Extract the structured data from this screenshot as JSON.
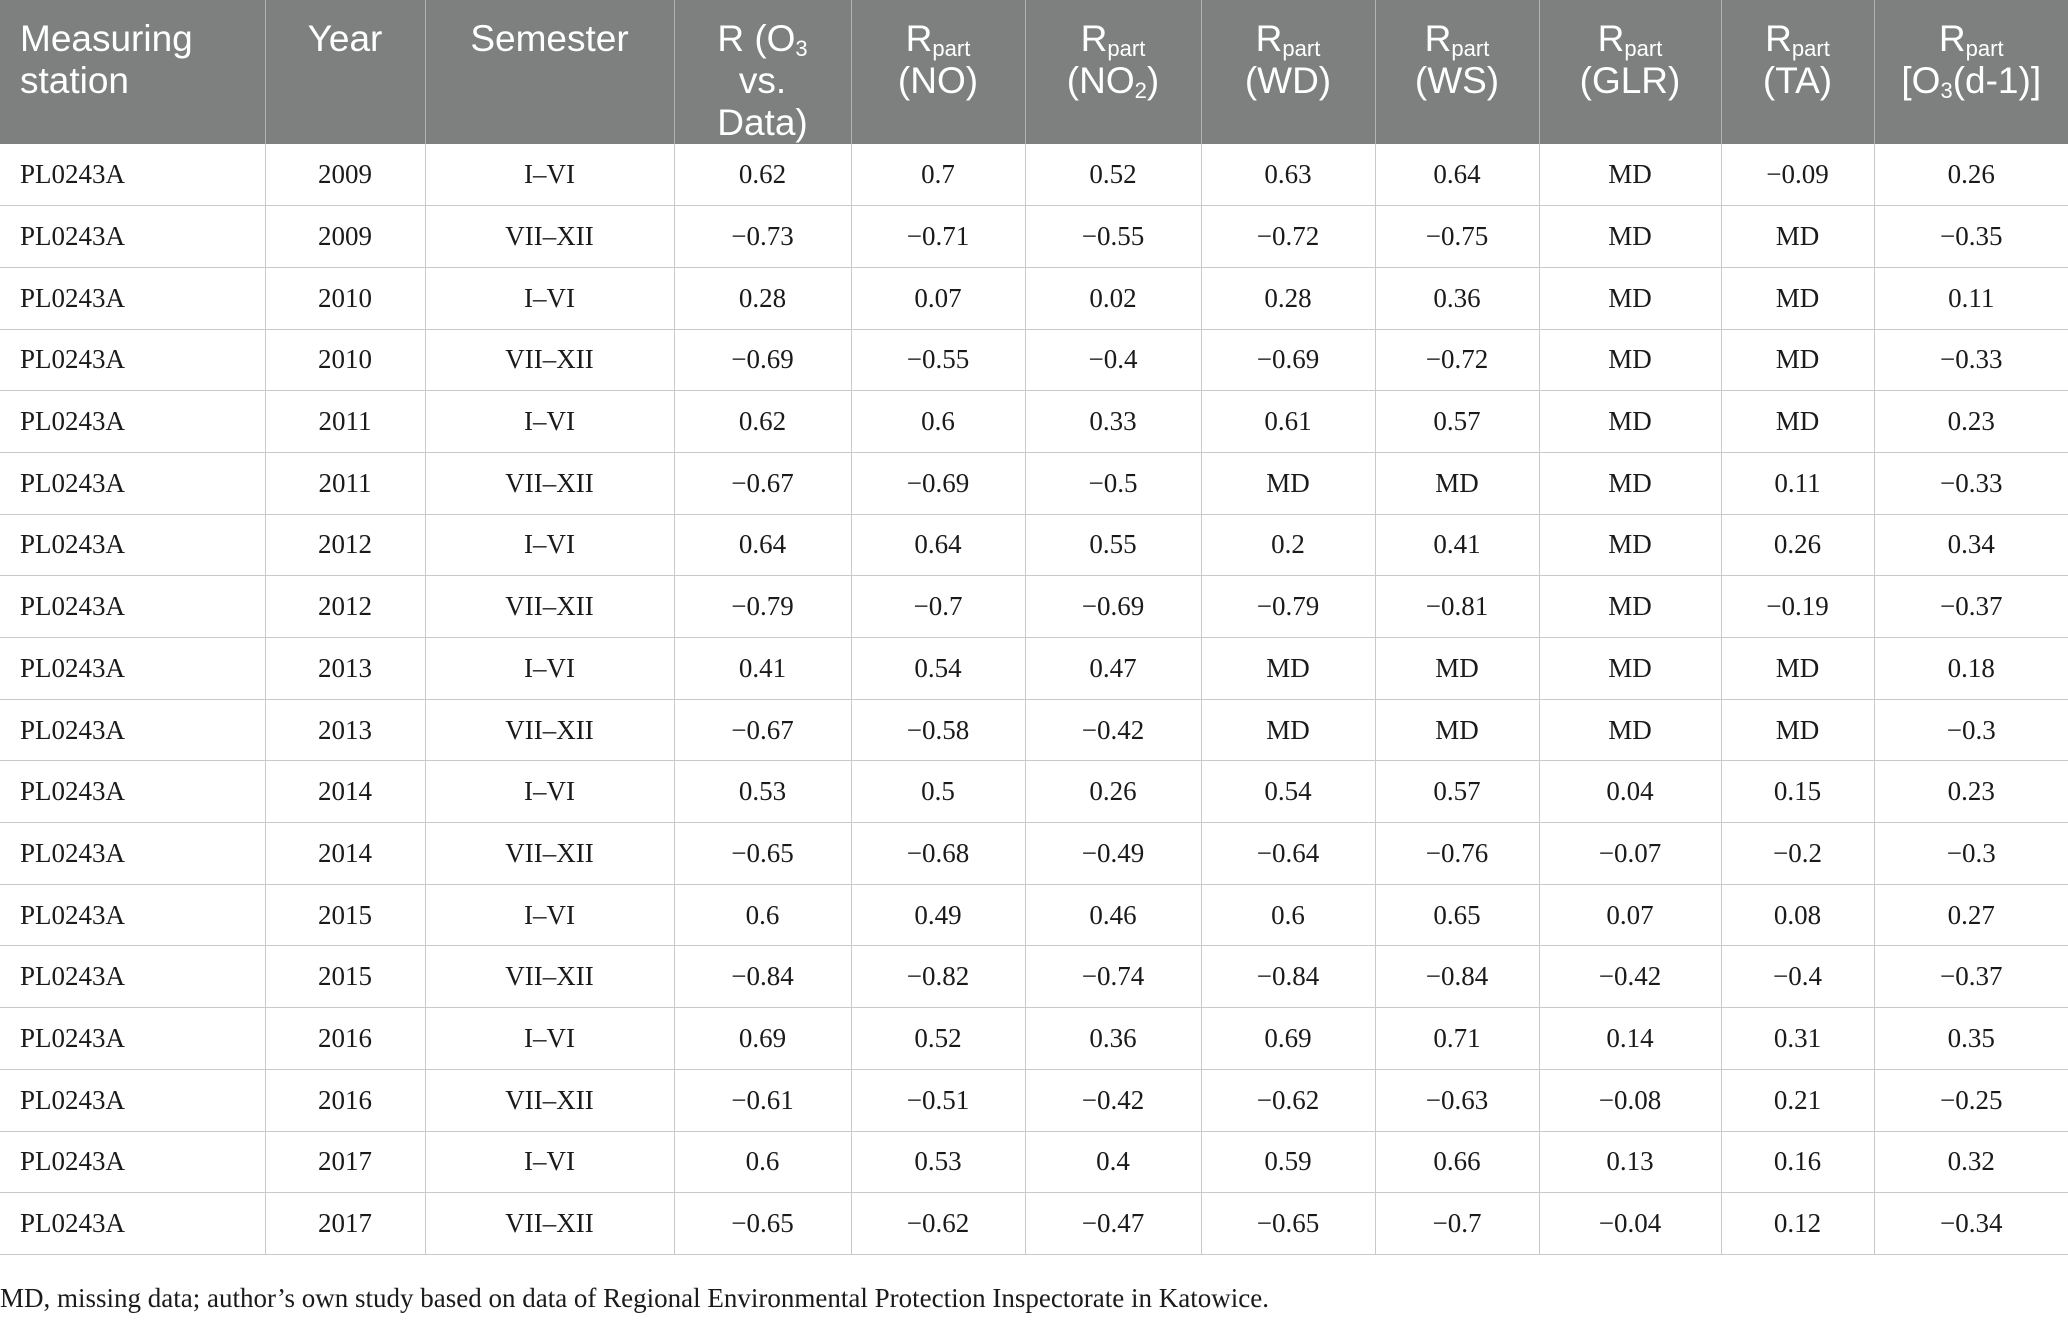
{
  "table": {
    "headers": [
      {
        "main": "Measuring station",
        "sub": "",
        "after": "",
        "tail": ""
      },
      {
        "main": "Year",
        "sub": "",
        "after": "",
        "tail": ""
      },
      {
        "main": "Semester",
        "sub": "",
        "after": "",
        "tail": ""
      },
      {
        "main": "R (O",
        "sub": "3",
        "after": " vs. Data)",
        "tail": ""
      },
      {
        "main": "R",
        "sub": "part",
        "after": "(NO)",
        "tail": ""
      },
      {
        "main": "R",
        "sub": "part",
        "after": "(NO",
        "sub2": "2",
        "tail": ")"
      },
      {
        "main": "R",
        "sub": "part",
        "after": "(WD)",
        "tail": ""
      },
      {
        "main": "R",
        "sub": "part",
        "after": "(WS)",
        "tail": ""
      },
      {
        "main": "R",
        "sub": "part",
        "after": "(GLR)",
        "tail": ""
      },
      {
        "main": "R",
        "sub": "part",
        "after": "(TA)",
        "tail": ""
      },
      {
        "main": "R",
        "sub": "part",
        "after": "[O",
        "sub2": "3",
        "tail": "(d-1)]"
      }
    ],
    "rows": [
      [
        "PL0243A",
        "2009",
        "I–VI",
        "0.62",
        "0.7",
        "0.52",
        "0.63",
        "0.64",
        "MD",
        "−0.09",
        "0.26"
      ],
      [
        "PL0243A",
        "2009",
        "VII–XII",
        "−0.73",
        "−0.71",
        "−0.55",
        "−0.72",
        "−0.75",
        "MD",
        "MD",
        "−0.35"
      ],
      [
        "PL0243A",
        "2010",
        "I–VI",
        "0.28",
        "0.07",
        "0.02",
        "0.28",
        "0.36",
        "MD",
        "MD",
        "0.11"
      ],
      [
        "PL0243A",
        "2010",
        "VII–XII",
        "−0.69",
        "−0.55",
        "−0.4",
        "−0.69",
        "−0.72",
        "MD",
        "MD",
        "−0.33"
      ],
      [
        "PL0243A",
        "2011",
        "I–VI",
        "0.62",
        "0.6",
        "0.33",
        "0.61",
        "0.57",
        "MD",
        "MD",
        "0.23"
      ],
      [
        "PL0243A",
        "2011",
        "VII–XII",
        "−0.67",
        "−0.69",
        "−0.5",
        "MD",
        "MD",
        "MD",
        "0.11",
        "−0.33"
      ],
      [
        "PL0243A",
        "2012",
        "I–VI",
        "0.64",
        "0.64",
        "0.55",
        "0.2",
        "0.41",
        "MD",
        "0.26",
        "0.34"
      ],
      [
        "PL0243A",
        "2012",
        "VII–XII",
        "−0.79",
        "−0.7",
        "−0.69",
        "−0.79",
        "−0.81",
        "MD",
        "−0.19",
        "−0.37"
      ],
      [
        "PL0243A",
        "2013",
        "I–VI",
        "0.41",
        "0.54",
        "0.47",
        "MD",
        "MD",
        "MD",
        "MD",
        "0.18"
      ],
      [
        "PL0243A",
        "2013",
        "VII–XII",
        "−0.67",
        "−0.58",
        "−0.42",
        "MD",
        "MD",
        "MD",
        "MD",
        "−0.3"
      ],
      [
        "PL0243A",
        "2014",
        "I–VI",
        "0.53",
        "0.5",
        "0.26",
        "0.54",
        "0.57",
        "0.04",
        "0.15",
        "0.23"
      ],
      [
        "PL0243A",
        "2014",
        "VII–XII",
        "−0.65",
        "−0.68",
        "−0.49",
        "−0.64",
        "−0.76",
        "−0.07",
        "−0.2",
        "−0.3"
      ],
      [
        "PL0243A",
        "2015",
        "I–VI",
        "0.6",
        "0.49",
        "0.46",
        "0.6",
        "0.65",
        "0.07",
        "0.08",
        "0.27"
      ],
      [
        "PL0243A",
        "2015",
        "VII–XII",
        "−0.84",
        "−0.82",
        "−0.74",
        "−0.84",
        "−0.84",
        "−0.42",
        "−0.4",
        "−0.37"
      ],
      [
        "PL0243A",
        "2016",
        "I–VI",
        "0.69",
        "0.52",
        "0.36",
        "0.69",
        "0.71",
        "0.14",
        "0.31",
        "0.35"
      ],
      [
        "PL0243A",
        "2016",
        "VII–XII",
        "−0.61",
        "−0.51",
        "−0.42",
        "−0.62",
        "−0.63",
        "−0.08",
        "0.21",
        "−0.25"
      ],
      [
        "PL0243A",
        "2017",
        "I–VI",
        "0.6",
        "0.53",
        "0.4",
        "0.59",
        "0.66",
        "0.13",
        "0.16",
        "0.32"
      ],
      [
        "PL0243A",
        "2017",
        "VII–XII",
        "−0.65",
        "−0.62",
        "−0.47",
        "−0.65",
        "−0.7",
        "−0.04",
        "0.12",
        "−0.34"
      ]
    ]
  },
  "footnote": "MD, missing data; author’s own study based on data of Regional Environmental Protection Inspectorate in Katowice.",
  "colors": {
    "header_bg": "#7e807f",
    "header_text": "#ffffff",
    "grid": "#c9c9c9"
  }
}
